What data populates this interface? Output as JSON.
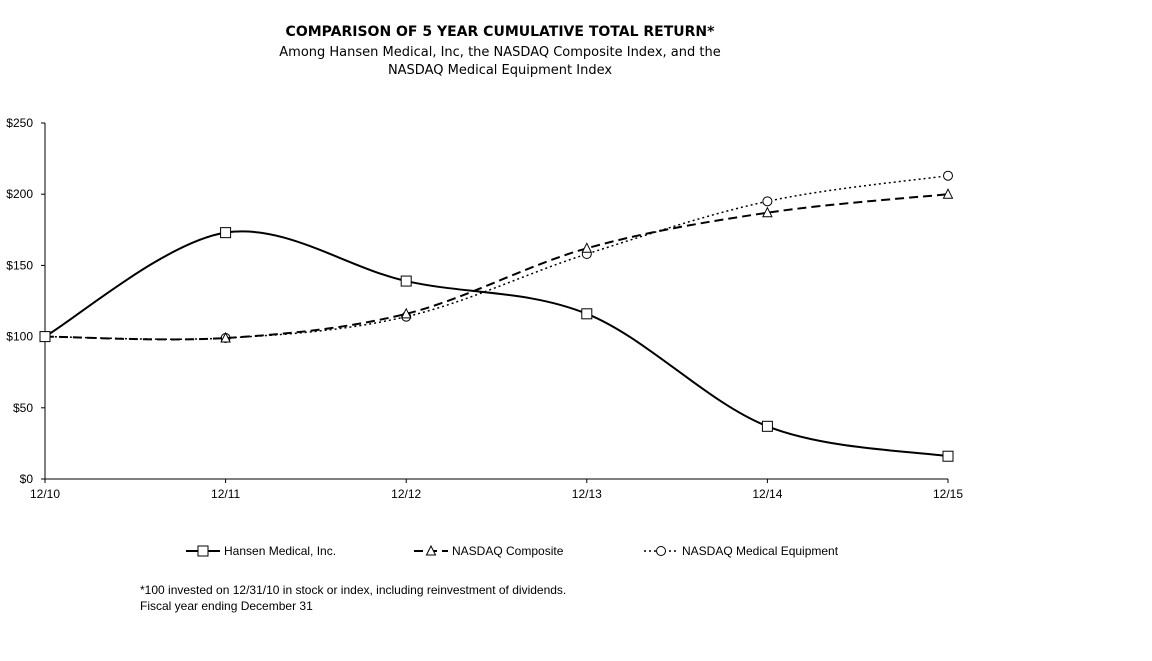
{
  "chart_data": {
    "type": "line",
    "title": "COMPARISON OF 5 YEAR CUMULATIVE TOTAL RETURN*",
    "subtitle": "Among Hansen Medical, Inc, the NASDAQ Composite Index, and the NASDAQ Medical Equipment Index",
    "xlabel": "",
    "ylabel": "",
    "categories": [
      "12/10",
      "12/11",
      "12/12",
      "12/13",
      "12/14",
      "12/15"
    ],
    "yticks": [
      "$0",
      "$50",
      "$100",
      "$150",
      "$200",
      "$250"
    ],
    "ylim": [
      0,
      250
    ],
    "grid": false,
    "legend_position": "bottom",
    "series": [
      {
        "name": "Hansen Medical, Inc.",
        "values": [
          100,
          173,
          139,
          116,
          37,
          16
        ],
        "line_style": "solid",
        "marker": "square",
        "color": "#000000"
      },
      {
        "name": "NASDAQ Composite",
        "values": [
          100,
          99,
          116,
          162,
          187,
          200
        ],
        "line_style": "dashed",
        "marker": "triangle",
        "color": "#000000"
      },
      {
        "name": "NASDAQ Medical Equipment",
        "values": [
          100,
          99,
          114,
          158,
          195,
          213
        ],
        "line_style": "dotted",
        "marker": "circle",
        "color": "#000000"
      }
    ]
  },
  "footnote": {
    "line1": "*100 invested on 12/31/10 in stock or index, including reinvestment of dividends.",
    "line2": "Fiscal year ending December 31"
  }
}
